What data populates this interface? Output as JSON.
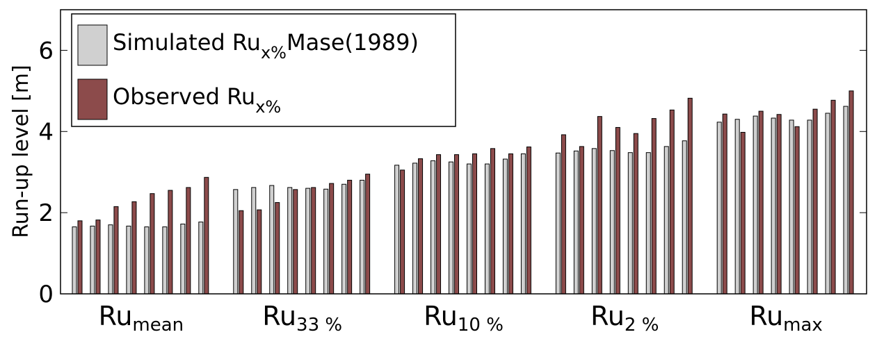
{
  "chart_data": {
    "type": "bar",
    "y_label": "Run-up level [m]",
    "categories": [
      {
        "base": "Ru",
        "sub": "mean"
      },
      {
        "base": "Ru",
        "sub": "33 %"
      },
      {
        "base": "Ru",
        "sub": "10 %"
      },
      {
        "base": "Ru",
        "sub": "2 %"
      },
      {
        "base": "Ru",
        "sub": "max"
      }
    ],
    "series": [
      {
        "name": [
          "Simulated Ru",
          "x%",
          "Mase(1989)"
        ],
        "color": "#d0d0d0",
        "values": [
          [
            1.65,
            1.67,
            1.7,
            1.67,
            1.65,
            1.65,
            1.72,
            1.77
          ],
          [
            2.57,
            2.62,
            2.67,
            2.62,
            2.6,
            2.58,
            2.7,
            2.8
          ],
          [
            3.17,
            3.22,
            3.28,
            3.25,
            3.2,
            3.2,
            3.32,
            3.45
          ],
          [
            3.47,
            3.52,
            3.58,
            3.53,
            3.48,
            3.48,
            3.63,
            3.77
          ],
          [
            4.23,
            4.3,
            4.38,
            4.33,
            4.28,
            4.28,
            4.45,
            4.62
          ]
        ]
      },
      {
        "name": [
          "Observed Ru",
          "x%"
        ],
        "color": "#8c4b4b",
        "values": [
          [
            1.8,
            1.82,
            2.15,
            2.27,
            2.47,
            2.55,
            2.62,
            2.87
          ],
          [
            2.05,
            2.07,
            2.25,
            2.57,
            2.62,
            2.72,
            2.8,
            2.95
          ],
          [
            3.05,
            3.33,
            3.43,
            3.43,
            3.45,
            3.58,
            3.45,
            3.62
          ],
          [
            3.92,
            3.63,
            4.37,
            4.1,
            3.95,
            4.32,
            4.53,
            4.82
          ],
          [
            4.43,
            3.98,
            4.5,
            4.42,
            4.12,
            4.55,
            4.77,
            5.0
          ]
        ]
      }
    ],
    "ylim": [
      0,
      7
    ],
    "yticks": [
      0,
      2,
      4,
      6
    ],
    "legend": "upper left"
  }
}
